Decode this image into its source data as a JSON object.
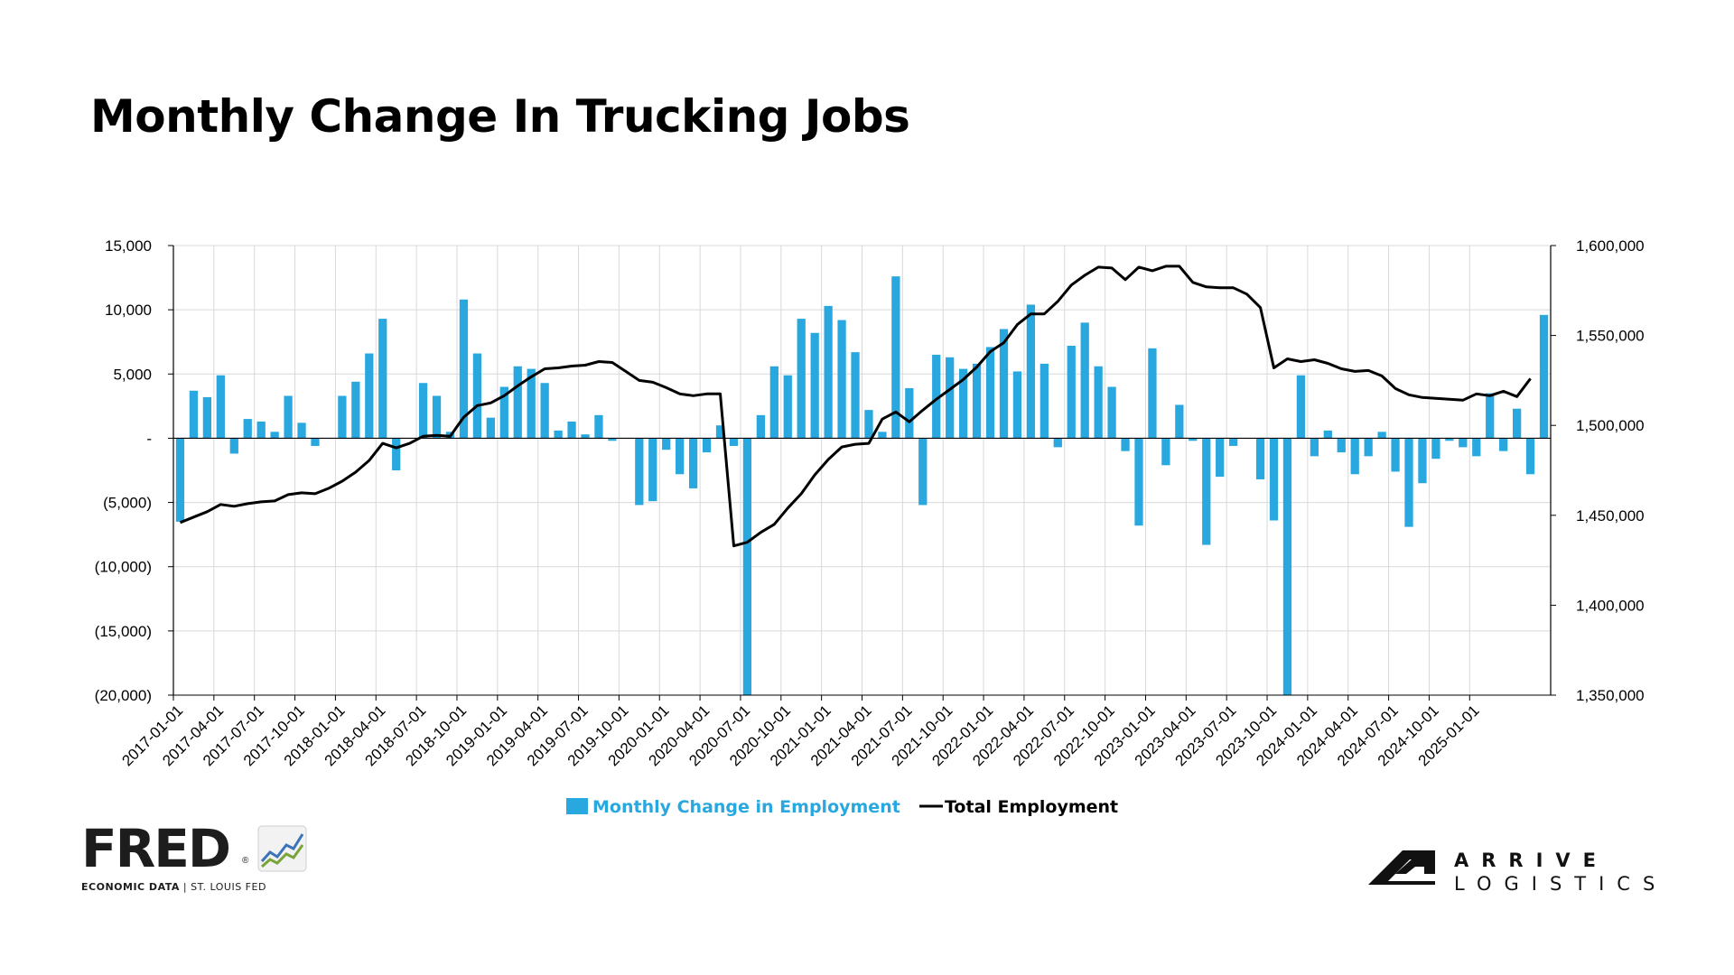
{
  "title": "Monthly Change In Trucking Jobs",
  "colors": {
    "bars": "#29a8e0",
    "line": "#000000",
    "grid": "#d9d9d9"
  },
  "logos": {
    "fred_word": "FRED",
    "fred_reg": "®",
    "fred_sub_left": "ECONOMIC DATA",
    "fred_sub_sep": "|",
    "fred_sub_right": "ST. LOUIS FED",
    "arrive_line1": "ARRIVE",
    "arrive_line2": "LOGISTICS"
  },
  "chart_data": {
    "type": "bar",
    "title": "Monthly Change In Trucking Jobs",
    "grid": true,
    "legend_position": "bottom",
    "y_left": {
      "range": [
        -20000,
        15000
      ],
      "ticks": [
        15000,
        10000,
        5000,
        0,
        -5000,
        -10000,
        -15000,
        -20000
      ],
      "tick_labels": [
        "15,000",
        "10,000",
        "5,000",
        "-",
        "(5,000)",
        "(10,000)",
        "(15,000)",
        "(20,000)"
      ]
    },
    "y_right": {
      "range": [
        1350000,
        1600000
      ],
      "ticks": [
        1600000,
        1550000,
        1500000,
        1450000,
        1400000,
        1350000
      ],
      "tick_labels": [
        "1,600,000",
        "1,550,000",
        "1,500,000",
        "1,450,000",
        "1,400,000",
        "1,350,000"
      ]
    },
    "x": {
      "start": "2017-01",
      "tick_labels": [
        "2017-01-01",
        "2017-04-01",
        "2017-07-01",
        "2017-10-01",
        "2018-01-01",
        "2018-04-01",
        "2018-07-01",
        "2018-10-01",
        "2019-01-01",
        "2019-04-01",
        "2019-07-01",
        "2019-10-01",
        "2020-01-01",
        "2020-04-01",
        "2020-07-01",
        "2020-10-01",
        "2021-01-01",
        "2021-04-01",
        "2021-07-01",
        "2021-10-01",
        "2022-01-01",
        "2022-04-01",
        "2022-07-01",
        "2022-10-01",
        "2023-01-01",
        "2023-04-01",
        "2023-07-01",
        "2023-10-01",
        "2024-01-01",
        "2024-04-01",
        "2024-07-01",
        "2024-10-01",
        "2025-01-01"
      ]
    },
    "series": [
      {
        "name": "Monthly Change in Employment",
        "type": "bar",
        "axis": "left",
        "values": [
          -6500,
          3700,
          3200,
          4900,
          -1200,
          1500,
          1300,
          500,
          3300,
          1200,
          -600,
          0,
          3300,
          4400,
          6600,
          9300,
          -2500,
          0,
          4300,
          3300,
          500,
          10800,
          6600,
          1600,
          4000,
          5600,
          5400,
          4300,
          600,
          1300,
          300,
          1800,
          -200,
          0,
          -5200,
          -4900,
          -900,
          -2800,
          -3900,
          -1100,
          1000,
          -600,
          -20000,
          1800,
          5600,
          4900,
          9300,
          8200,
          10300,
          9200,
          6700,
          2200,
          500,
          12600,
          3900,
          -5200,
          6500,
          6300,
          5400,
          5800,
          7100,
          8500,
          5200,
          10400,
          5800,
          -700,
          7200,
          9000,
          5600,
          4000,
          -1000,
          -6800,
          7000,
          -2100,
          2600,
          -200,
          -8300,
          -3000,
          -600,
          0,
          -3200,
          -6400,
          -20000,
          4900,
          -1400,
          600,
          -1100,
          -2800,
          -1400,
          500,
          -2600,
          -6900,
          -3500,
          -1600,
          -200,
          -700,
          -1400,
          3500,
          -1000,
          2300,
          -2800,
          9600
        ]
      },
      {
        "name": "Total Employment",
        "type": "line",
        "axis": "right",
        "values": [
          1446000,
          1449000,
          1452000,
          1456000,
          1455000,
          1456500,
          1457500,
          1458000,
          1461500,
          1462500,
          1462000,
          1465000,
          1469000,
          1474000,
          1480500,
          1490000,
          1487500,
          1490000,
          1494000,
          1494500,
          1494000,
          1504500,
          1511000,
          1512500,
          1516500,
          1522000,
          1527000,
          1531500,
          1532000,
          1533000,
          1533500,
          1535500,
          1535000,
          1530000,
          1525000,
          1524000,
          1521000,
          1517500,
          1516500,
          1517500,
          1517500,
          1433000,
          1435000,
          1440500,
          1445000,
          1454000,
          1462000,
          1472500,
          1481000,
          1488000,
          1489500,
          1490000,
          1503500,
          1507500,
          1502000,
          1508500,
          1514500,
          1520000,
          1525500,
          1532500,
          1541000,
          1546000,
          1556000,
          1562000,
          1562000,
          1569000,
          1578000,
          1583500,
          1588000,
          1587500,
          1581000,
          1588000,
          1586000,
          1588500,
          1588500,
          1579500,
          1577000,
          1576500,
          1576500,
          1573000,
          1565500,
          1532000,
          1537000,
          1535500,
          1536500,
          1534500,
          1531500,
          1530000,
          1530500,
          1527500,
          1520500,
          1517000,
          1515500,
          1515000,
          1514500,
          1514000,
          1517500,
          1516500,
          1519000,
          1516000,
          1526000
        ]
      }
    ]
  }
}
